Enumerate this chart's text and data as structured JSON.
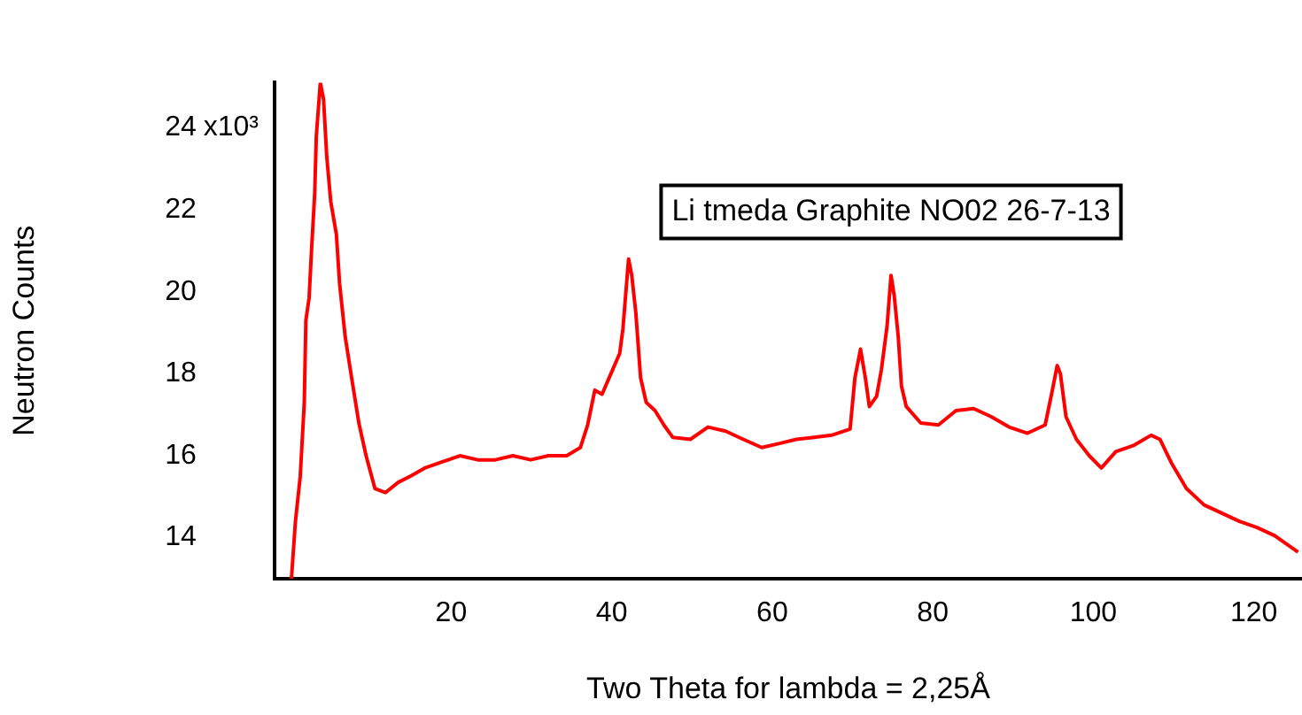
{
  "chart_data": {
    "type": "line",
    "xlabel": "Two Theta for lambda = 2,25Å",
    "ylabel": "Neutron Counts",
    "annotations": [
      "Li tmeda Graphite NO02 26-7-13",
      "x10³"
    ],
    "xlim": [
      -2,
      126
    ],
    "xticks": [
      20,
      40,
      60,
      80,
      100,
      120
    ],
    "ylim": [
      13,
      25.1
    ],
    "yticks": [
      14,
      16,
      18,
      20,
      22,
      24
    ],
    "grid": false,
    "legend": false,
    "marker": "none",
    "line_style": "solid",
    "series": [
      {
        "color": "#ff0000",
        "x": [
          0.1,
          0.6,
          1.2,
          1.7,
          1.9,
          2.3,
          2.6,
          3.0,
          3.2,
          3.7,
          4.1,
          4.5,
          5.0,
          5.7,
          6.1,
          6.8,
          7.6,
          8.5,
          9.4,
          10.5,
          11.8,
          13.4,
          14.9,
          16.7,
          18.9,
          21.1,
          23.3,
          25.5,
          27.7,
          29.9,
          32.1,
          34.4,
          36.1,
          37.0,
          37.9,
          38.8,
          39.9,
          41.0,
          41.4,
          42.1,
          42.5,
          43.0,
          43.6,
          44.3,
          45.4,
          46.5,
          47.6,
          49.8,
          52.0,
          54.2,
          56.4,
          58.7,
          60.9,
          63.0,
          65.2,
          67.4,
          69.7,
          70.3,
          71.0,
          71.6,
          72.1,
          73.0,
          73.6,
          74.3,
          74.8,
          75.2,
          75.7,
          76.1,
          76.7,
          78.5,
          80.7,
          82.9,
          85.1,
          87.3,
          89.5,
          91.8,
          94.0,
          94.8,
          95.5,
          95.9,
          96.6,
          97.9,
          99.5,
          101.0,
          102.8,
          105.0,
          107.2,
          108.3,
          109.8,
          111.6,
          113.8,
          116.0,
          118.2,
          120.4,
          122.6,
          125.5
        ],
        "values": [
          13.0,
          14.4,
          15.5,
          17.3,
          19.3,
          19.85,
          21.0,
          22.4,
          23.8,
          25.1,
          24.7,
          23.3,
          22.2,
          21.4,
          20.2,
          18.9,
          17.9,
          16.8,
          16.0,
          15.2,
          15.1,
          15.35,
          15.5,
          15.7,
          15.85,
          16.0,
          15.9,
          15.9,
          16.0,
          15.9,
          16.0,
          16.0,
          16.2,
          16.75,
          17.6,
          17.5,
          18.0,
          18.5,
          19.1,
          20.8,
          20.4,
          19.5,
          17.9,
          17.3,
          17.1,
          16.75,
          16.45,
          16.4,
          16.7,
          16.6,
          16.4,
          16.2,
          16.3,
          16.4,
          16.45,
          16.5,
          16.65,
          17.9,
          18.6,
          17.9,
          17.2,
          17.45,
          18.1,
          19.15,
          20.4,
          19.9,
          18.9,
          17.7,
          17.2,
          16.8,
          16.75,
          17.1,
          17.15,
          16.95,
          16.7,
          16.55,
          16.75,
          17.5,
          18.2,
          18.0,
          16.95,
          16.4,
          16.0,
          15.7,
          16.1,
          16.25,
          16.5,
          16.4,
          15.8,
          15.2,
          14.8,
          14.6,
          14.4,
          14.25,
          14.05,
          13.65
        ]
      }
    ]
  }
}
